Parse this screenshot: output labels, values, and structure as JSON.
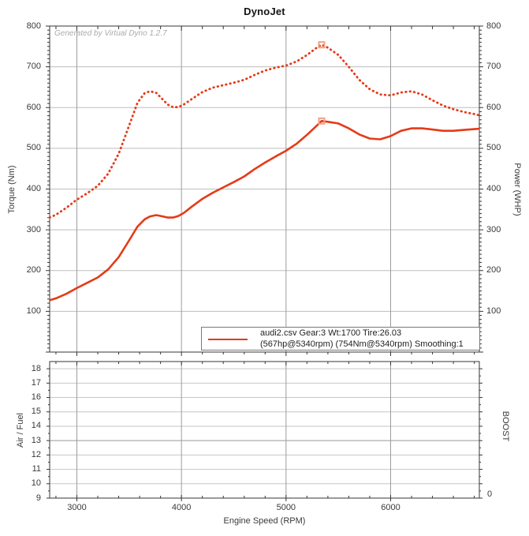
{
  "title": "DynoJet",
  "watermark": "Generated by Virtual Dyno 1.2.7",
  "legend": {
    "line1": "audi2.csv Gear:3 Wt:1700 Tire:26.03",
    "line2": "(567hp@5340rpm) (754Nm@5340rpm) Smoothing:1"
  },
  "colors": {
    "curve": "#e53a17",
    "marker": "#f1a083",
    "grid_vertical": "#9c9c9c",
    "grid_horizontal": "#bdbdbd",
    "grid_af_reference": "#999999",
    "spine": "#363636",
    "text": "#3a3a3a",
    "watermark": "#ababab"
  },
  "axes": {
    "x": {
      "label": "Engine Speed (RPM)",
      "min": 2740,
      "max": 6848,
      "major_ticks": [
        3000,
        4000,
        5000,
        6000
      ],
      "minor_step": 200
    },
    "torque": {
      "label": "Torque (Nm)",
      "min": 0,
      "max": 800,
      "major_ticks": [
        100,
        200,
        300,
        400,
        500,
        600,
        700,
        800
      ],
      "minor_step": 10
    },
    "power": {
      "label": "Power (WHP)",
      "min": 0,
      "max": 800,
      "major_ticks": [
        100,
        200,
        300,
        400,
        500,
        600,
        700,
        800
      ]
    },
    "af": {
      "label": "Air / Fuel",
      "min": 9,
      "max": 18.5,
      "major_ticks": [
        9,
        10,
        11,
        12,
        13,
        14,
        15,
        16,
        17,
        18
      ],
      "minor_step": 0.5,
      "reference_line": 13
    },
    "boost": {
      "label": "BOOST",
      "zero_label": "0"
    }
  },
  "chart_data": {
    "type": "line",
    "title": "DynoJet",
    "xlabel": "Engine Speed (RPM)",
    "ylabel_left": "Torque (Nm)",
    "ylabel_right": "Power (WHP)",
    "xlim": [
      2740,
      6848
    ],
    "ylim": [
      0,
      800
    ],
    "grid": true,
    "legend_position": "bottom-right",
    "series": [
      {
        "name": "Torque (Nm)",
        "style": "dotted",
        "peak": {
          "rpm": 5340,
          "value": 754
        },
        "points": [
          [
            2740,
            330
          ],
          [
            2800,
            337
          ],
          [
            2900,
            354
          ],
          [
            3000,
            374
          ],
          [
            3100,
            390
          ],
          [
            3200,
            408
          ],
          [
            3300,
            438
          ],
          [
            3400,
            487
          ],
          [
            3500,
            556
          ],
          [
            3580,
            612
          ],
          [
            3650,
            636
          ],
          [
            3700,
            640
          ],
          [
            3760,
            636
          ],
          [
            3820,
            620
          ],
          [
            3870,
            607
          ],
          [
            3920,
            601
          ],
          [
            3970,
            601
          ],
          [
            4020,
            607
          ],
          [
            4100,
            621
          ],
          [
            4200,
            638
          ],
          [
            4300,
            649
          ],
          [
            4400,
            655
          ],
          [
            4500,
            661
          ],
          [
            4600,
            668
          ],
          [
            4700,
            680
          ],
          [
            4800,
            691
          ],
          [
            4900,
            698
          ],
          [
            5000,
            703
          ],
          [
            5100,
            713
          ],
          [
            5200,
            729
          ],
          [
            5300,
            748
          ],
          [
            5340,
            754
          ],
          [
            5400,
            747
          ],
          [
            5500,
            729
          ],
          [
            5600,
            700
          ],
          [
            5700,
            668
          ],
          [
            5800,
            645
          ],
          [
            5900,
            632
          ],
          [
            6000,
            630
          ],
          [
            6100,
            637
          ],
          [
            6200,
            640
          ],
          [
            6300,
            632
          ],
          [
            6400,
            618
          ],
          [
            6500,
            605
          ],
          [
            6600,
            596
          ],
          [
            6700,
            589
          ],
          [
            6800,
            584
          ],
          [
            6848,
            581
          ]
        ]
      },
      {
        "name": "Power (WHP)",
        "style": "solid",
        "peak": {
          "rpm": 5340,
          "value": 567
        },
        "points": [
          [
            2740,
            127
          ],
          [
            2800,
            132
          ],
          [
            2900,
            143
          ],
          [
            3000,
            157
          ],
          [
            3100,
            170
          ],
          [
            3200,
            183
          ],
          [
            3300,
            203
          ],
          [
            3400,
            233
          ],
          [
            3500,
            274
          ],
          [
            3580,
            308
          ],
          [
            3650,
            326
          ],
          [
            3700,
            333
          ],
          [
            3760,
            336
          ],
          [
            3820,
            333
          ],
          [
            3870,
            330
          ],
          [
            3920,
            330
          ],
          [
            3970,
            334
          ],
          [
            4020,
            341
          ],
          [
            4100,
            357
          ],
          [
            4200,
            376
          ],
          [
            4300,
            391
          ],
          [
            4400,
            404
          ],
          [
            4500,
            417
          ],
          [
            4600,
            431
          ],
          [
            4700,
            449
          ],
          [
            4800,
            465
          ],
          [
            4900,
            480
          ],
          [
            5000,
            494
          ],
          [
            5100,
            511
          ],
          [
            5200,
            533
          ],
          [
            5300,
            557
          ],
          [
            5340,
            567
          ],
          [
            5400,
            565
          ],
          [
            5500,
            561
          ],
          [
            5600,
            549
          ],
          [
            5700,
            534
          ],
          [
            5800,
            524
          ],
          [
            5900,
            522
          ],
          [
            6000,
            530
          ],
          [
            6100,
            543
          ],
          [
            6200,
            549
          ],
          [
            6300,
            549
          ],
          [
            6400,
            546
          ],
          [
            6500,
            543
          ],
          [
            6600,
            543
          ],
          [
            6700,
            545
          ],
          [
            6800,
            547
          ],
          [
            6848,
            548
          ]
        ]
      }
    ]
  }
}
